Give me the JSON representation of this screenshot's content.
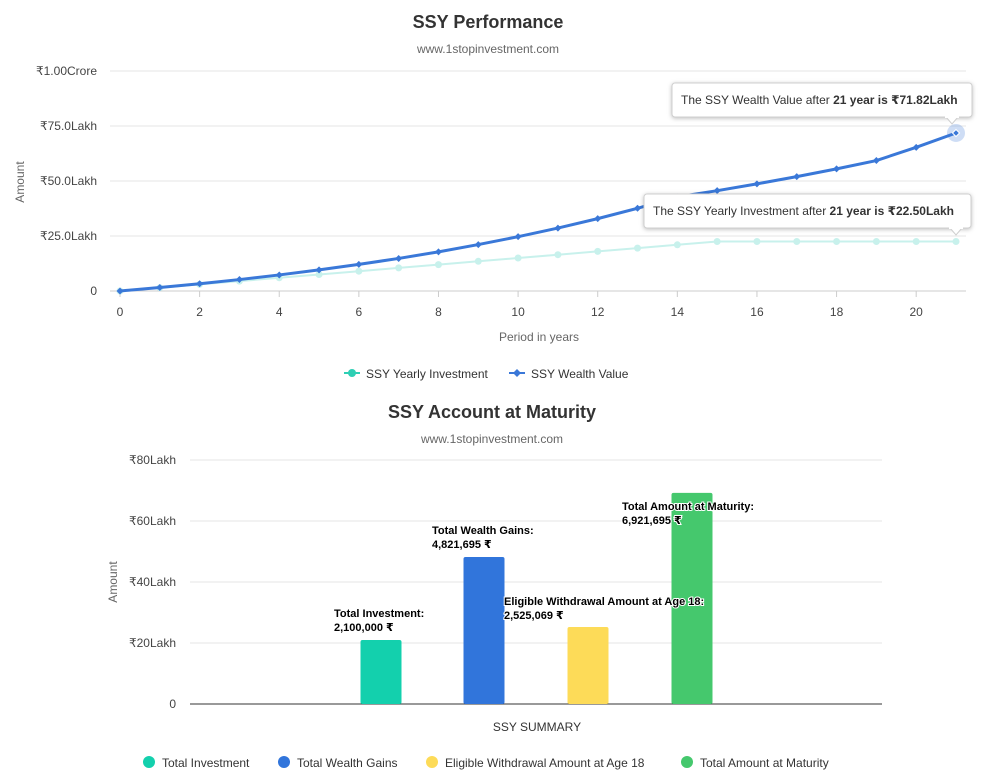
{
  "chart_data": [
    {
      "type": "line",
      "title": "SSY Performance",
      "subtitle": "www.1stopinvestment.com",
      "xlabel": "Period in years",
      "ylabel": "Amount",
      "xlim": [
        0,
        21
      ],
      "ylim": [
        0,
        10000000
      ],
      "x_ticks": [
        "0",
        "2",
        "4",
        "6",
        "8",
        "10",
        "12",
        "14",
        "16",
        "18",
        "20"
      ],
      "y_ticks": [
        "0",
        "₹25.0Lakh",
        "₹50.0Lakh",
        "₹75.0Lakh",
        "₹1.00Crore"
      ],
      "grid": true,
      "legend_position": "bottom",
      "x": [
        0,
        1,
        2,
        3,
        4,
        5,
        6,
        7,
        8,
        9,
        10,
        11,
        12,
        13,
        14,
        15,
        16,
        17,
        18,
        19,
        20,
        21
      ],
      "series": [
        {
          "name": "SSY Yearly Investment",
          "color": "#c8f1ec",
          "marker_color": "#c8f1ec",
          "legend_color": "#2ecfb4",
          "values": [
            0,
            150000,
            300000,
            450000,
            600000,
            750000,
            900000,
            1050000,
            1200000,
            1350000,
            1500000,
            1650000,
            1800000,
            1950000,
            2100000,
            2250000,
            2250000,
            2250000,
            2250000,
            2250000,
            2250000,
            2250000
          ]
        },
        {
          "name": "SSY Wealth Value",
          "color": "#3a78d8",
          "marker_color": "#3a78d8",
          "legend_color": "#3a78d8",
          "values": [
            0,
            160000,
            330000,
            520000,
            730000,
            960000,
            1210000,
            1480000,
            1780000,
            2110000,
            2470000,
            2860000,
            3290000,
            3760000,
            4280000,
            4560000,
            4870000,
            5200000,
            5550000,
            5930000,
            6530000,
            7182000
          ]
        }
      ],
      "tooltips": [
        {
          "prefix": "The SSY Wealth Value after ",
          "bold": "21 year is ₹71.82Lakh"
        },
        {
          "prefix": "The SSY Yearly Investment after ",
          "bold": "21 year is ₹22.50Lakh"
        }
      ]
    },
    {
      "type": "bar",
      "title": "SSY Account at Maturity",
      "subtitle": "www.1stopinvestment.com",
      "xlabel": "SSY SUMMARY",
      "ylabel": "Amount",
      "ylim": [
        0,
        8000000
      ],
      "y_ticks": [
        "0",
        "₹20Lakh",
        "₹40Lakh",
        "₹60Lakh",
        "₹80Lakh"
      ],
      "grid": true,
      "legend_position": "bottom",
      "categories": [
        "Total Investment",
        "Total Wealth Gains",
        "Eligible Withdrawal Amount at Age 18",
        "Total Amount at Maturity"
      ],
      "values": [
        2100000,
        4821695,
        2525069,
        6921695
      ],
      "colors": [
        "#13d0ad",
        "#3175db",
        "#fddb58",
        "#45c86d"
      ],
      "data_labels": [
        {
          "line1": "Total Investment:",
          "line2": "2,100,000 ₹"
        },
        {
          "line1": "Total Wealth Gains:",
          "line2": "4,821,695 ₹"
        },
        {
          "line1": "Eligible Withdrawal Amount at Age 18:",
          "line2": "2,525,069 ₹"
        },
        {
          "line1": "Total Amount at Maturity:",
          "line2": "6,921,695 ₹"
        }
      ]
    }
  ]
}
